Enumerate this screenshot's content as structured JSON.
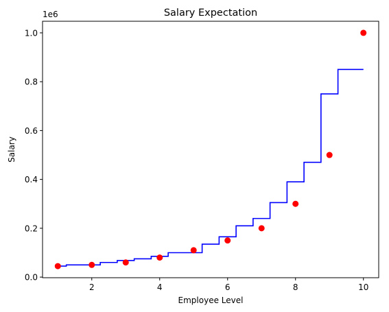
{
  "chart_data": {
    "type": "scatter",
    "title": "Salary Expectation",
    "xlabel": "Employee Level",
    "ylabel": "Salary",
    "y_offset_label": "1e6",
    "xlim": [
      0.55,
      10.45
    ],
    "ylim": [
      -0.0025,
      1.0475
    ],
    "x_ticks": [
      2,
      4,
      6,
      8,
      10
    ],
    "x_tick_labels": [
      "2",
      "4",
      "6",
      "8",
      "10"
    ],
    "y_ticks": [
      0.0,
      0.2,
      0.4,
      0.6,
      0.8,
      1.0
    ],
    "y_tick_labels": [
      "0.0",
      "0.2",
      "0.4",
      "0.6",
      "0.8",
      "1.0"
    ],
    "grid": false,
    "series": [
      {
        "kind": "scatter",
        "color": "#ff0000",
        "x": [
          1,
          2,
          3,
          4,
          5,
          6,
          7,
          8,
          9,
          10
        ],
        "y": [
          0.045,
          0.05,
          0.06,
          0.08,
          0.11,
          0.15,
          0.2,
          0.3,
          0.5,
          1.0
        ]
      },
      {
        "kind": "step",
        "color": "#0000ff",
        "x": [
          1.0,
          1.5,
          2.0,
          2.5,
          3.0,
          3.5,
          4.0,
          4.5,
          5.0,
          5.5,
          6.0,
          6.5,
          7.0,
          7.5,
          8.0,
          8.5,
          9.0,
          9.5,
          10.0
        ],
        "y": [
          0.045,
          0.05,
          0.05,
          0.06,
          0.068,
          0.075,
          0.085,
          0.1,
          0.1,
          0.135,
          0.165,
          0.21,
          0.24,
          0.305,
          0.39,
          0.47,
          0.75,
          0.85,
          0.85
        ]
      }
    ]
  }
}
